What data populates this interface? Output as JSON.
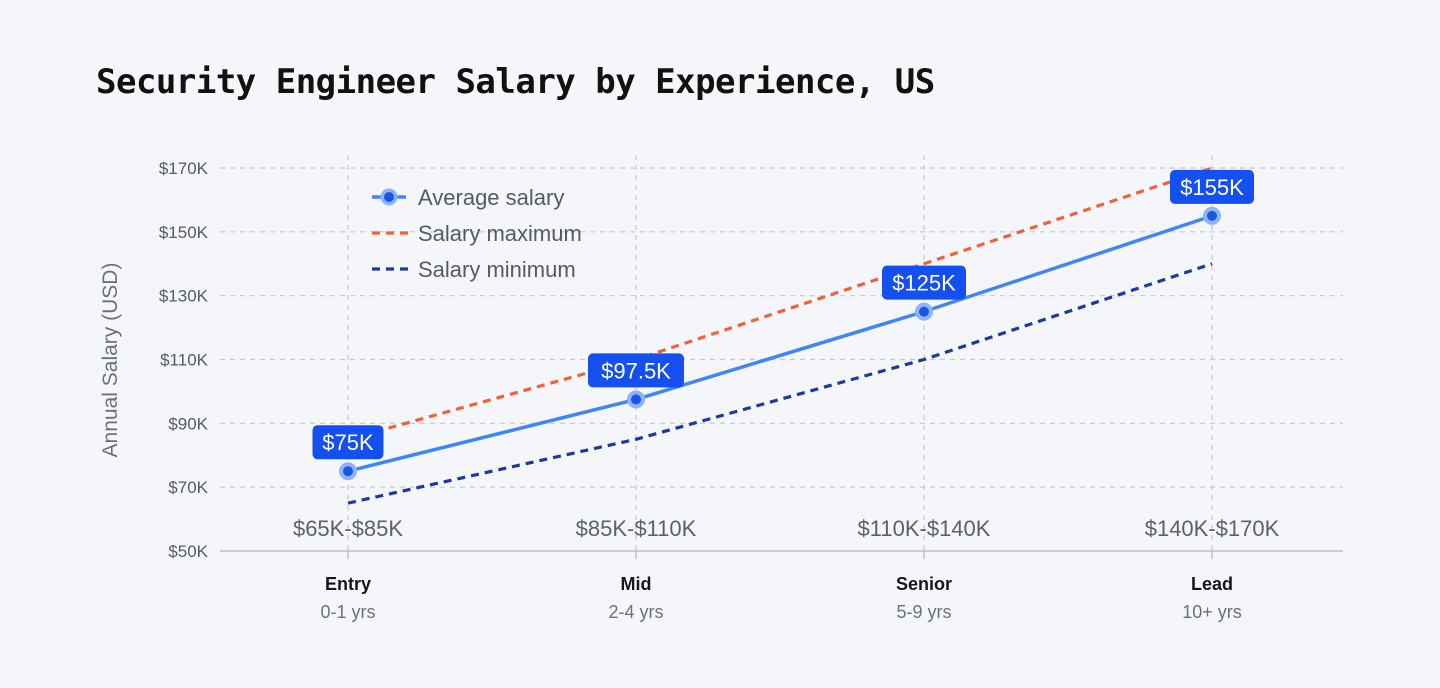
{
  "chart_data": {
    "type": "line",
    "title": "Security Engineer Salary by Experience, US",
    "ylabel": "Annual Salary (USD)",
    "xlabel": "",
    "ylim": [
      50000,
      170000
    ],
    "yticks": [
      {
        "value": 50000,
        "label": "$50K"
      },
      {
        "value": 70000,
        "label": "$70K"
      },
      {
        "value": 90000,
        "label": "$90K"
      },
      {
        "value": 110000,
        "label": "$110K"
      },
      {
        "value": 130000,
        "label": "$130K"
      },
      {
        "value": 150000,
        "label": "$150K"
      },
      {
        "value": 170000,
        "label": "$170K"
      }
    ],
    "grid": true,
    "legend_position": "top-left",
    "categories": [
      {
        "label": "Entry",
        "sublabel": "0-1 yrs",
        "range": "$65K-$85K"
      },
      {
        "label": "Mid",
        "sublabel": "2-4 yrs",
        "range": "$85K-$110K"
      },
      {
        "label": "Senior",
        "sublabel": "5-9 yrs",
        "range": "$110K-$140K"
      },
      {
        "label": "Lead",
        "sublabel": "10+ yrs",
        "range": "$140K-$170K"
      }
    ],
    "series": [
      {
        "name": "Average salary",
        "values": [
          75000,
          97500,
          125000,
          155000
        ],
        "labels": [
          "$75K",
          "$97.5K",
          "$125K",
          "$155K"
        ],
        "color": "#4285f4",
        "style": "solid-markers"
      },
      {
        "name": "Salary maximum",
        "values": [
          85000,
          110000,
          140000,
          170000
        ],
        "color": "#f0623a",
        "style": "dashed"
      },
      {
        "name": "Salary minimum",
        "values": [
          65000,
          85000,
          110000,
          140000
        ],
        "color": "#1a3a9e",
        "style": "dashed"
      }
    ],
    "colors": {
      "background": "#f4f6fa",
      "grid": "#c4c8d2",
      "axis": "#b9bdcc",
      "label_bg": "#1450f0",
      "marker_fill": "#1a56e6"
    }
  }
}
